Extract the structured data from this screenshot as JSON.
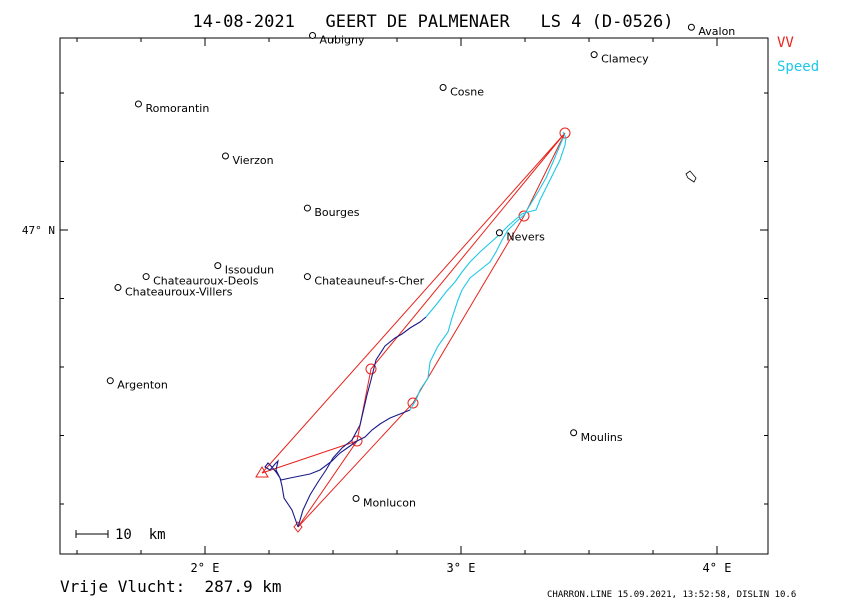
{
  "header": {
    "title": "14-08-2021   GEERT DE PALMENAER   LS 4 (D-0526)"
  },
  "legend": [
    {
      "label": "VV",
      "color": "#e8231c"
    },
    {
      "label": "Speed",
      "color": "#1ec8e6"
    }
  ],
  "axes": {
    "x_ticks": [
      {
        "lon": 2,
        "label": "2° E"
      },
      {
        "lon": 3,
        "label": "3° E"
      },
      {
        "lon": 4,
        "label": "4° E"
      }
    ],
    "y_ticks": [
      {
        "lat": 47,
        "label": "47° N"
      }
    ]
  },
  "scale_bar": {
    "label": "10  km"
  },
  "towns": [
    {
      "name": "Avalon",
      "lon": 3.9,
      "lat": 47.74
    },
    {
      "name": "Aubigny",
      "lon": 2.42,
      "lat": 47.71
    },
    {
      "name": "Clamecy",
      "lon": 3.52,
      "lat": 47.64
    },
    {
      "name": "Cosne",
      "lon": 2.93,
      "lat": 47.52
    },
    {
      "name": "Romorantin",
      "lon": 1.74,
      "lat": 47.46
    },
    {
      "name": "Vierzon",
      "lon": 2.08,
      "lat": 47.27
    },
    {
      "name": "Bourges",
      "lon": 2.4,
      "lat": 47.08
    },
    {
      "name": "Nevers",
      "lon": 3.15,
      "lat": 46.99
    },
    {
      "name": "Issoudun",
      "lon": 2.05,
      "lat": 46.87
    },
    {
      "name": "Chateauroux-Deols",
      "lon": 1.77,
      "lat": 46.83
    },
    {
      "name": "Chateauneuf-s-Cher",
      "lon": 2.4,
      "lat": 46.83
    },
    {
      "name": "Chateauroux-Villers",
      "lon": 1.66,
      "lat": 46.79
    },
    {
      "name": "Argenton",
      "lon": 1.63,
      "lat": 46.45
    },
    {
      "name": "Moulins",
      "lon": 3.44,
      "lat": 46.26
    },
    {
      "name": "Monlucon",
      "lon": 2.59,
      "lat": 46.02
    }
  ],
  "footer": {
    "distance": "Vrije Vlucht:  287.9 km",
    "credit": "CHARRON.LINE 15.09.2021, 13:52:58, DISLIN 10.6"
  }
}
